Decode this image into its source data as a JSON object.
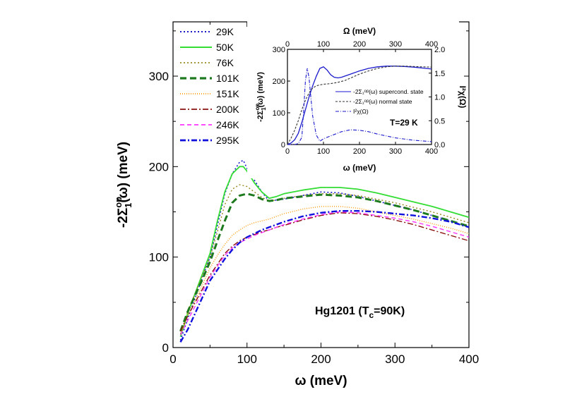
{
  "chart_data": [
    {
      "type": "line",
      "id": "main",
      "title": "",
      "xlabel": "ω (meV)",
      "ylabel": "-2Σ",
      "ylabel_sup": "op",
      "ylabel_sub": "1",
      "ylabel_tail": "(ω) (meV)",
      "xlim": [
        0,
        400
      ],
      "ylim": [
        0,
        360
      ],
      "xticks": [
        0,
        100,
        200,
        300,
        400
      ],
      "yticks": [
        0,
        100,
        200,
        300
      ],
      "annotation": {
        "text_pre": "Hg1201 (T",
        "text_sub": "c",
        "text_post": "=90K)"
      },
      "legend_position": "top-left",
      "series": [
        {
          "name": "29K",
          "color": "#1a1acc",
          "dash": "2,3",
          "width": 1.6,
          "x": [
            10,
            20,
            30,
            40,
            50,
            60,
            70,
            80,
            90,
            95,
            100,
            110,
            120,
            130,
            140,
            150,
            175,
            200,
            225,
            250,
            275,
            300,
            325,
            350,
            375,
            400
          ],
          "y": [
            8,
            32,
            55,
            78,
            100,
            135,
            170,
            192,
            205,
            207,
            198,
            185,
            172,
            162,
            163,
            164,
            168,
            172,
            171,
            167,
            162,
            157,
            152,
            146,
            140,
            133
          ]
        },
        {
          "name": "50K",
          "color": "#33dd33",
          "dash": "",
          "width": 1.8,
          "x": [
            10,
            20,
            30,
            40,
            50,
            60,
            70,
            80,
            90,
            95,
            100,
            110,
            120,
            130,
            140,
            150,
            175,
            200,
            225,
            250,
            275,
            300,
            325,
            350,
            375,
            400
          ],
          "y": [
            12,
            38,
            60,
            82,
            104,
            140,
            172,
            192,
            200,
            200,
            195,
            182,
            172,
            165,
            167,
            170,
            174,
            177,
            177,
            175,
            171,
            166,
            161,
            156,
            150,
            144
          ]
        },
        {
          "name": "76K",
          "color": "#9a8a20",
          "dash": "2,3",
          "width": 1.4,
          "x": [
            10,
            20,
            30,
            40,
            50,
            60,
            70,
            80,
            90,
            100,
            110,
            120,
            130,
            140,
            150,
            175,
            200,
            225,
            250,
            275,
            300,
            325,
            350,
            375,
            400
          ],
          "y": [
            15,
            40,
            60,
            80,
            100,
            128,
            158,
            175,
            180,
            178,
            172,
            166,
            162,
            163,
            165,
            168,
            170,
            170,
            168,
            164,
            160,
            155,
            150,
            144,
            138
          ]
        },
        {
          "name": "101K",
          "color": "#1e7a1e",
          "dash": "9,5",
          "width": 3,
          "x": [
            10,
            20,
            30,
            40,
            50,
            60,
            70,
            80,
            90,
            100,
            110,
            120,
            130,
            140,
            150,
            175,
            200,
            225,
            250,
            275,
            300,
            325,
            350,
            375,
            400
          ],
          "y": [
            18,
            40,
            58,
            76,
            95,
            118,
            140,
            160,
            168,
            170,
            168,
            164,
            162,
            163,
            165,
            167,
            169,
            168,
            166,
            162,
            157,
            152,
            146,
            140,
            134
          ]
        },
        {
          "name": "151K",
          "color": "#ff9900",
          "dash": "1,2",
          "width": 1.4,
          "x": [
            10,
            20,
            30,
            40,
            50,
            60,
            70,
            80,
            90,
            100,
            110,
            120,
            130,
            140,
            150,
            175,
            200,
            225,
            250,
            275,
            300,
            325,
            350,
            375,
            400
          ],
          "y": [
            14,
            35,
            52,
            70,
            88,
            102,
            114,
            124,
            130,
            135,
            138,
            140,
            142,
            145,
            148,
            153,
            156,
            156,
            154,
            150,
            146,
            142,
            137,
            132,
            126
          ]
        },
        {
          "name": "200K",
          "color": "#8b1010",
          "dash": "8,3,2,3",
          "width": 1.4,
          "x": [
            10,
            20,
            30,
            40,
            50,
            60,
            70,
            80,
            90,
            100,
            110,
            120,
            130,
            140,
            150,
            175,
            200,
            225,
            250,
            275,
            300,
            325,
            350,
            375,
            400
          ],
          "y": [
            18,
            35,
            50,
            65,
            80,
            92,
            104,
            112,
            118,
            122,
            125,
            128,
            130,
            133,
            135,
            141,
            146,
            149,
            148,
            145,
            141,
            136,
            130,
            124,
            118
          ]
        },
        {
          "name": "246K",
          "color": "#ff33ff",
          "dash": "6,4",
          "width": 1.4,
          "x": [
            10,
            20,
            30,
            40,
            50,
            60,
            70,
            80,
            90,
            100,
            110,
            120,
            130,
            140,
            150,
            175,
            200,
            225,
            250,
            275,
            300,
            325,
            350,
            375,
            400
          ],
          "y": [
            14,
            30,
            46,
            62,
            78,
            90,
            102,
            110,
            116,
            120,
            124,
            127,
            130,
            133,
            136,
            142,
            147,
            150,
            149,
            146,
            143,
            139,
            134,
            128,
            122
          ]
        },
        {
          "name": "295K",
          "color": "#1010dd",
          "dash": "8,3,2,3",
          "width": 2.4,
          "x": [
            10,
            20,
            30,
            40,
            50,
            60,
            70,
            80,
            90,
            100,
            110,
            120,
            130,
            140,
            150,
            175,
            200,
            225,
            250,
            275,
            300,
            325,
            350,
            375,
            400
          ],
          "y": [
            6,
            20,
            38,
            56,
            74,
            86,
            98,
            108,
            116,
            122,
            126,
            130,
            133,
            136,
            139,
            145,
            149,
            151,
            151,
            150,
            148,
            146,
            143,
            139,
            133
          ]
        }
      ]
    },
    {
      "type": "line",
      "id": "inset",
      "xlabel": "ω (meV)",
      "x2label": "Ω (meV)",
      "ylabel": "-2Σ",
      "ylabel_sup": "op",
      "ylabel_sub": "1",
      "ylabel_tail": "(ω) (meV)",
      "y2label": "I²χ(Ω)",
      "xlim": [
        0,
        400
      ],
      "ylim": [
        0,
        300
      ],
      "y2lim": [
        0,
        2.0
      ],
      "xticks": [
        0,
        100,
        200,
        300,
        400
      ],
      "yticks": [
        0,
        100,
        200,
        300
      ],
      "y2ticks": [
        "0.0",
        "0.5",
        "1.0",
        "1.5",
        "2.0"
      ],
      "annotation": "T=29 K",
      "legend": [
        {
          "label": "-2Σ₁ᵒᵖ(ω) supercond. state",
          "color": "#1a1acc",
          "dash": ""
        },
        {
          "label": "-2Σ₁ᵒᵖ(ω) normal state",
          "color": "#333333",
          "dash": "3,2"
        },
        {
          "label": "I²χ(Ω)",
          "color": "#1a1acc",
          "dash": "5,2,1,2"
        }
      ],
      "series": [
        {
          "name": "-2Σ₁ᵒᵖ(ω) supercond. state",
          "axis": "left",
          "color": "#1a1acc",
          "dash": "",
          "width": 1.3,
          "x": [
            0,
            10,
            20,
            30,
            40,
            50,
            60,
            70,
            80,
            90,
            100,
            110,
            120,
            130,
            140,
            150,
            175,
            200,
            225,
            250,
            275,
            300,
            325,
            350,
            375,
            400
          ],
          "y": [
            0,
            5,
            15,
            35,
            70,
            110,
            150,
            185,
            215,
            240,
            245,
            235,
            220,
            212,
            210,
            212,
            222,
            232,
            240,
            245,
            247,
            247,
            246,
            244,
            241,
            238
          ]
        },
        {
          "name": "-2Σ₁ᵒᵖ(ω) normal state",
          "axis": "left",
          "color": "#333333",
          "dash": "3,2",
          "width": 1.1,
          "x": [
            0,
            10,
            20,
            30,
            40,
            50,
            60,
            70,
            80,
            90,
            100,
            120,
            140,
            160,
            180,
            200,
            225,
            250,
            275,
            300,
            325,
            350,
            375,
            400
          ],
          "y": [
            0,
            20,
            45,
            75,
            110,
            140,
            163,
            178,
            185,
            188,
            190,
            192,
            196,
            202,
            212,
            222,
            232,
            240,
            245,
            247,
            247,
            246,
            245,
            244
          ]
        },
        {
          "name": "I²χ(Ω)",
          "axis": "right",
          "color": "#1a1acc",
          "dash": "5,2,1,2",
          "width": 1.1,
          "x": [
            0,
            20,
            30,
            40,
            45,
            50,
            55,
            60,
            65,
            70,
            80,
            90,
            100,
            120,
            150,
            175,
            200,
            225,
            250,
            300,
            350,
            400
          ],
          "y": [
            0,
            0,
            0.02,
            0.15,
            0.7,
            1.35,
            1.6,
            1.4,
            1.0,
            0.6,
            0.2,
            0.07,
            0.12,
            0.18,
            0.27,
            0.31,
            0.3,
            0.27,
            0.22,
            0.14,
            0.09,
            0.06
          ]
        }
      ]
    }
  ]
}
